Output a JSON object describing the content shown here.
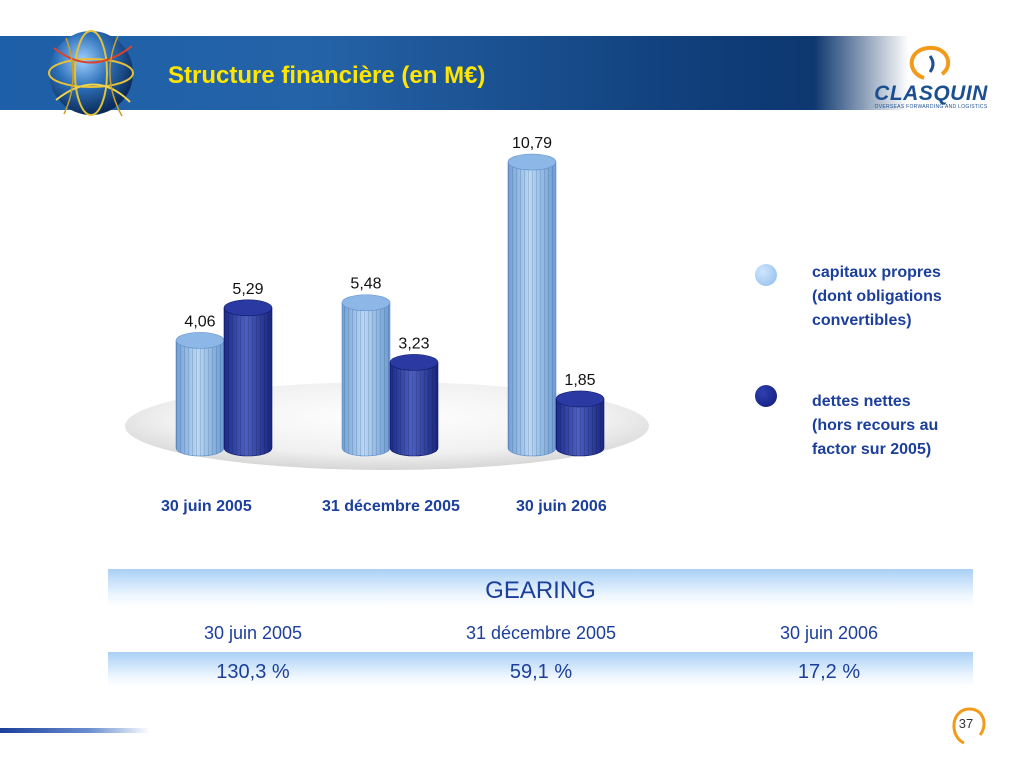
{
  "slide": {
    "title": "Structure financière (en M€)",
    "page_number": "37"
  },
  "logo": {
    "name": "CLASQUIN",
    "tagline": "OVERSEAS FORWARDING AND LOGISTICS"
  },
  "colors": {
    "capitaux": "#8cbbe8",
    "dettes": "#1b2a8a",
    "title": "#ffe600",
    "text": "#1b3f9a"
  },
  "chart_data": {
    "type": "bar",
    "categories": [
      "30 juin 2005",
      "31 décembre 2005",
      "30 juin 2006"
    ],
    "series": [
      {
        "name": "capitaux propres (dont obligations convertibles)",
        "values": [
          4.06,
          5.48,
          10.79
        ],
        "labels": [
          "4,06",
          "5,48",
          "10,79"
        ]
      },
      {
        "name": "dettes nettes (hors recours au factor sur 2005)",
        "values": [
          5.29,
          3.23,
          1.85
        ],
        "labels": [
          "5,29",
          "3,23",
          "1,85"
        ]
      }
    ],
    "legend_lines": [
      [
        "capitaux propres",
        "(dont obligations",
        "convertibles)"
      ],
      [
        "dettes nettes",
        "(hors recours au",
        "factor sur 2005)"
      ]
    ],
    "legend_position": "right"
  },
  "gearing": {
    "title": "GEARING",
    "headers": [
      "30 juin 2005",
      "31 décembre 2005",
      "30 juin 2006"
    ],
    "values": [
      "130,3 %",
      "59,1 %",
      "17,2 %"
    ]
  }
}
